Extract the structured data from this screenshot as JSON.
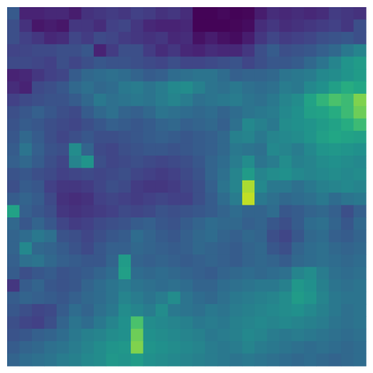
{
  "chart_data": {
    "type": "heatmap",
    "title": "",
    "xlabel": "",
    "ylabel": "",
    "colormap": "viridis",
    "value_range": [
      0,
      1
    ],
    "grid": false,
    "legend": "none",
    "rows": 29,
    "cols": 29,
    "values": [
      [
        0.35,
        0.12,
        0.12,
        0.14,
        0.14,
        0.1,
        0.18,
        0.2,
        0.22,
        0.2,
        0.24,
        0.22,
        0.18,
        0.2,
        0.16,
        0.01,
        0.01,
        0.03,
        0.01,
        0.02,
        0.1,
        0.16,
        0.14,
        0.16,
        0.14,
        0.16,
        0.22,
        0.2,
        0.18
      ],
      [
        0.3,
        0.18,
        0.08,
        0.1,
        0.08,
        0.2,
        0.2,
        0.16,
        0.24,
        0.26,
        0.2,
        0.14,
        0.12,
        0.12,
        0.14,
        0.01,
        0.01,
        0.01,
        0.02,
        0.04,
        0.16,
        0.2,
        0.16,
        0.18,
        0.2,
        0.22,
        0.24,
        0.2,
        0.3
      ],
      [
        0.3,
        0.24,
        0.2,
        0.14,
        0.16,
        0.26,
        0.22,
        0.28,
        0.26,
        0.22,
        0.2,
        0.18,
        0.2,
        0.14,
        0.16,
        0.06,
        0.1,
        0.06,
        0.04,
        0.1,
        0.2,
        0.26,
        0.22,
        0.24,
        0.26,
        0.3,
        0.32,
        0.34,
        0.3
      ],
      [
        0.25,
        0.26,
        0.28,
        0.28,
        0.3,
        0.3,
        0.34,
        0.12,
        0.22,
        0.3,
        0.3,
        0.22,
        0.16,
        0.2,
        0.14,
        0.12,
        0.16,
        0.14,
        0.14,
        0.2,
        0.3,
        0.36,
        0.3,
        0.32,
        0.34,
        0.38,
        0.42,
        0.5,
        0.56
      ],
      [
        0.28,
        0.28,
        0.26,
        0.24,
        0.3,
        0.26,
        0.3,
        0.34,
        0.32,
        0.32,
        0.3,
        0.28,
        0.26,
        0.3,
        0.26,
        0.26,
        0.28,
        0.3,
        0.32,
        0.26,
        0.3,
        0.34,
        0.34,
        0.36,
        0.42,
        0.48,
        0.56,
        0.64,
        0.68
      ],
      [
        0.12,
        0.14,
        0.2,
        0.24,
        0.26,
        0.36,
        0.42,
        0.44,
        0.46,
        0.44,
        0.4,
        0.36,
        0.38,
        0.44,
        0.46,
        0.48,
        0.48,
        0.44,
        0.38,
        0.4,
        0.4,
        0.42,
        0.48,
        0.5,
        0.52,
        0.58,
        0.6,
        0.64,
        0.68
      ],
      [
        0.16,
        0.12,
        0.28,
        0.3,
        0.34,
        0.42,
        0.46,
        0.42,
        0.44,
        0.5,
        0.52,
        0.48,
        0.52,
        0.58,
        0.6,
        0.54,
        0.48,
        0.46,
        0.5,
        0.46,
        0.44,
        0.46,
        0.52,
        0.5,
        0.58,
        0.62,
        0.7,
        0.76,
        0.74
      ],
      [
        0.24,
        0.28,
        0.3,
        0.32,
        0.32,
        0.36,
        0.42,
        0.5,
        0.46,
        0.48,
        0.5,
        0.48,
        0.52,
        0.56,
        0.52,
        0.46,
        0.48,
        0.5,
        0.52,
        0.48,
        0.46,
        0.5,
        0.56,
        0.6,
        0.72,
        0.78,
        0.82,
        0.8,
        0.88
      ],
      [
        0.3,
        0.34,
        0.38,
        0.34,
        0.3,
        0.28,
        0.36,
        0.42,
        0.46,
        0.4,
        0.38,
        0.42,
        0.48,
        0.46,
        0.44,
        0.42,
        0.44,
        0.4,
        0.44,
        0.48,
        0.5,
        0.52,
        0.58,
        0.62,
        0.7,
        0.72,
        0.76,
        0.8,
        0.86
      ],
      [
        0.32,
        0.36,
        0.34,
        0.3,
        0.28,
        0.26,
        0.3,
        0.34,
        0.38,
        0.36,
        0.34,
        0.36,
        0.4,
        0.42,
        0.38,
        0.4,
        0.42,
        0.38,
        0.46,
        0.58,
        0.54,
        0.5,
        0.6,
        0.62,
        0.64,
        0.68,
        0.72,
        0.76,
        0.8
      ],
      [
        0.34,
        0.42,
        0.36,
        0.3,
        0.26,
        0.3,
        0.34,
        0.3,
        0.3,
        0.32,
        0.34,
        0.36,
        0.38,
        0.36,
        0.34,
        0.36,
        0.38,
        0.42,
        0.54,
        0.56,
        0.5,
        0.56,
        0.58,
        0.6,
        0.64,
        0.7,
        0.74,
        0.72,
        0.7
      ],
      [
        0.36,
        0.48,
        0.38,
        0.32,
        0.3,
        0.6,
        0.4,
        0.28,
        0.26,
        0.3,
        0.32,
        0.34,
        0.34,
        0.32,
        0.34,
        0.36,
        0.38,
        0.42,
        0.5,
        0.48,
        0.46,
        0.58,
        0.56,
        0.52,
        0.58,
        0.64,
        0.66,
        0.64,
        0.62
      ],
      [
        0.38,
        0.42,
        0.36,
        0.3,
        0.26,
        0.56,
        0.64,
        0.3,
        0.26,
        0.28,
        0.3,
        0.28,
        0.26,
        0.28,
        0.3,
        0.34,
        0.4,
        0.44,
        0.52,
        0.6,
        0.48,
        0.52,
        0.6,
        0.54,
        0.56,
        0.6,
        0.62,
        0.6,
        0.58
      ],
      [
        0.32,
        0.34,
        0.3,
        0.28,
        0.24,
        0.26,
        0.28,
        0.26,
        0.28,
        0.3,
        0.26,
        0.24,
        0.22,
        0.24,
        0.28,
        0.32,
        0.4,
        0.46,
        0.56,
        0.68,
        0.56,
        0.6,
        0.62,
        0.58,
        0.56,
        0.58,
        0.6,
        0.58,
        0.6
      ],
      [
        0.3,
        0.36,
        0.34,
        0.24,
        0.2,
        0.2,
        0.22,
        0.26,
        0.3,
        0.28,
        0.22,
        0.2,
        0.2,
        0.22,
        0.26,
        0.3,
        0.38,
        0.48,
        0.56,
        0.92,
        0.58,
        0.5,
        0.5,
        0.46,
        0.5,
        0.54,
        0.56,
        0.58,
        0.56
      ],
      [
        0.36,
        0.4,
        0.36,
        0.28,
        0.18,
        0.16,
        0.18,
        0.24,
        0.26,
        0.24,
        0.22,
        0.24,
        0.26,
        0.24,
        0.24,
        0.3,
        0.36,
        0.44,
        0.52,
        0.94,
        0.5,
        0.46,
        0.42,
        0.44,
        0.46,
        0.5,
        0.44,
        0.48,
        0.5
      ],
      [
        0.72,
        0.38,
        0.34,
        0.3,
        0.2,
        0.18,
        0.2,
        0.22,
        0.24,
        0.28,
        0.26,
        0.28,
        0.32,
        0.3,
        0.32,
        0.34,
        0.36,
        0.4,
        0.44,
        0.4,
        0.4,
        0.44,
        0.34,
        0.36,
        0.4,
        0.42,
        0.38,
        0.3,
        0.38
      ],
      [
        0.42,
        0.34,
        0.4,
        0.34,
        0.26,
        0.22,
        0.24,
        0.28,
        0.3,
        0.32,
        0.36,
        0.38,
        0.34,
        0.32,
        0.36,
        0.4,
        0.44,
        0.42,
        0.42,
        0.38,
        0.4,
        0.34,
        0.3,
        0.36,
        0.44,
        0.46,
        0.4,
        0.34,
        0.42
      ],
      [
        0.4,
        0.44,
        0.5,
        0.46,
        0.32,
        0.3,
        0.26,
        0.3,
        0.34,
        0.36,
        0.44,
        0.4,
        0.36,
        0.34,
        0.38,
        0.42,
        0.44,
        0.4,
        0.38,
        0.42,
        0.4,
        0.3,
        0.26,
        0.34,
        0.42,
        0.44,
        0.38,
        0.36,
        0.4
      ],
      [
        0.4,
        0.58,
        0.42,
        0.4,
        0.36,
        0.32,
        0.28,
        0.34,
        0.38,
        0.38,
        0.42,
        0.4,
        0.38,
        0.36,
        0.38,
        0.42,
        0.4,
        0.38,
        0.36,
        0.4,
        0.42,
        0.34,
        0.3,
        0.4,
        0.44,
        0.46,
        0.42,
        0.4,
        0.42
      ],
      [
        0.38,
        0.46,
        0.48,
        0.42,
        0.38,
        0.36,
        0.34,
        0.34,
        0.4,
        0.68,
        0.4,
        0.38,
        0.4,
        0.38,
        0.36,
        0.38,
        0.4,
        0.38,
        0.36,
        0.4,
        0.42,
        0.4,
        0.36,
        0.42,
        0.44,
        0.46,
        0.44,
        0.42,
        0.44
      ],
      [
        0.36,
        0.3,
        0.34,
        0.36,
        0.32,
        0.34,
        0.36,
        0.4,
        0.44,
        0.7,
        0.44,
        0.42,
        0.44,
        0.42,
        0.4,
        0.38,
        0.36,
        0.4,
        0.42,
        0.44,
        0.42,
        0.44,
        0.46,
        0.56,
        0.6,
        0.52,
        0.46,
        0.44,
        0.46
      ],
      [
        0.2,
        0.36,
        0.4,
        0.34,
        0.32,
        0.34,
        0.4,
        0.44,
        0.48,
        0.52,
        0.48,
        0.46,
        0.44,
        0.46,
        0.44,
        0.4,
        0.4,
        0.44,
        0.46,
        0.48,
        0.5,
        0.5,
        0.54,
        0.66,
        0.62,
        0.54,
        0.48,
        0.46,
        0.48
      ],
      [
        0.36,
        0.4,
        0.38,
        0.36,
        0.34,
        0.38,
        0.42,
        0.44,
        0.48,
        0.56,
        0.52,
        0.48,
        0.52,
        0.6,
        0.48,
        0.44,
        0.42,
        0.46,
        0.5,
        0.52,
        0.54,
        0.56,
        0.6,
        0.68,
        0.64,
        0.56,
        0.5,
        0.48,
        0.48
      ],
      [
        0.34,
        0.3,
        0.26,
        0.28,
        0.36,
        0.44,
        0.4,
        0.46,
        0.5,
        0.6,
        0.56,
        0.52,
        0.6,
        0.5,
        0.48,
        0.46,
        0.5,
        0.48,
        0.52,
        0.54,
        0.56,
        0.58,
        0.6,
        0.62,
        0.58,
        0.54,
        0.5,
        0.46,
        0.48
      ],
      [
        0.3,
        0.26,
        0.24,
        0.3,
        0.4,
        0.48,
        0.44,
        0.5,
        0.56,
        0.62,
        0.82,
        0.6,
        0.58,
        0.56,
        0.54,
        0.5,
        0.52,
        0.5,
        0.54,
        0.56,
        0.58,
        0.56,
        0.58,
        0.56,
        0.54,
        0.52,
        0.48,
        0.46,
        0.48
      ],
      [
        0.32,
        0.34,
        0.38,
        0.4,
        0.44,
        0.5,
        0.54,
        0.56,
        0.6,
        0.62,
        0.86,
        0.62,
        0.6,
        0.58,
        0.56,
        0.54,
        0.5,
        0.52,
        0.54,
        0.58,
        0.56,
        0.52,
        0.5,
        0.52,
        0.5,
        0.48,
        0.46,
        0.44,
        0.46
      ],
      [
        0.36,
        0.4,
        0.42,
        0.46,
        0.48,
        0.52,
        0.56,
        0.6,
        0.64,
        0.66,
        0.88,
        0.64,
        0.62,
        0.6,
        0.58,
        0.56,
        0.52,
        0.5,
        0.52,
        0.56,
        0.52,
        0.5,
        0.48,
        0.46,
        0.44,
        0.46,
        0.44,
        0.42,
        0.44
      ],
      [
        0.4,
        0.44,
        0.46,
        0.48,
        0.52,
        0.54,
        0.58,
        0.6,
        0.66,
        0.64,
        0.68,
        0.62,
        0.6,
        0.58,
        0.56,
        0.54,
        0.52,
        0.5,
        0.48,
        0.5,
        0.48,
        0.46,
        0.44,
        0.42,
        0.44,
        0.42,
        0.4,
        0.42,
        0.44
      ]
    ]
  }
}
